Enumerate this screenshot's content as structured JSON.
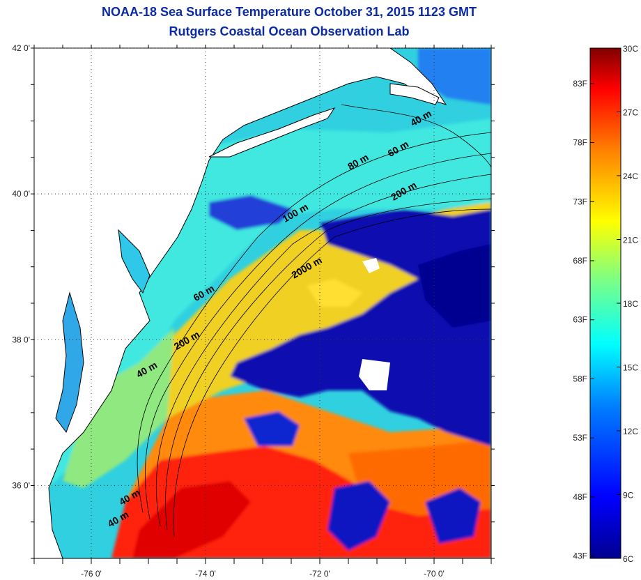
{
  "title": {
    "line1": "NOAA-18 Sea Surface Temperature October 31, 2015 1123 GMT",
    "line2": "Rutgers Coastal Ocean Observation Lab"
  },
  "map": {
    "lat_labels": [
      "42 0'",
      "40 0'",
      "38 0'",
      "36 0'"
    ],
    "lon_labels": [
      "-76 0'",
      "-74 0'",
      "-72 0'",
      "-70 0'"
    ],
    "lat_range": [
      35.0,
      42.0
    ],
    "lon_range": [
      -77.0,
      -69.0
    ],
    "gridlines": "dotted",
    "contour_labels": [
      {
        "text": "40 m",
        "lon": -70.2,
        "lat": 41.0
      },
      {
        "text": "60 m",
        "lon": -70.6,
        "lat": 40.58
      },
      {
        "text": "80 m",
        "lon": -71.3,
        "lat": 40.4
      },
      {
        "text": "200 m",
        "lon": -70.5,
        "lat": 40.0
      },
      {
        "text": "100 m",
        "lon": -72.4,
        "lat": 39.7
      },
      {
        "text": "2000 m",
        "lon": -72.2,
        "lat": 38.95
      },
      {
        "text": "60 m",
        "lon": -74.0,
        "lat": 38.6
      },
      {
        "text": "200 m",
        "lon": -74.3,
        "lat": 37.95
      },
      {
        "text": "40 m",
        "lon": -75.0,
        "lat": 37.55
      },
      {
        "text": "40 m",
        "lon": -75.3,
        "lat": 35.8
      },
      {
        "text": "40 m",
        "lon": -75.5,
        "lat": 35.5
      }
    ]
  },
  "colorbar": {
    "fahrenheit_labels": [
      "83F",
      "78F",
      "73F",
      "68F",
      "63F",
      "58F",
      "53F",
      "48F",
      "43F"
    ],
    "celsius_labels": [
      "30C",
      "27C",
      "24C",
      "21C",
      "18C",
      "15C",
      "12C",
      "9C",
      "6C"
    ],
    "range_c": [
      6,
      30
    ],
    "colors": [
      "#00008f",
      "#0000ff",
      "#0080ff",
      "#00ffff",
      "#80ff80",
      "#ffff00",
      "#ff8000",
      "#ff0000",
      "#800000"
    ]
  }
}
